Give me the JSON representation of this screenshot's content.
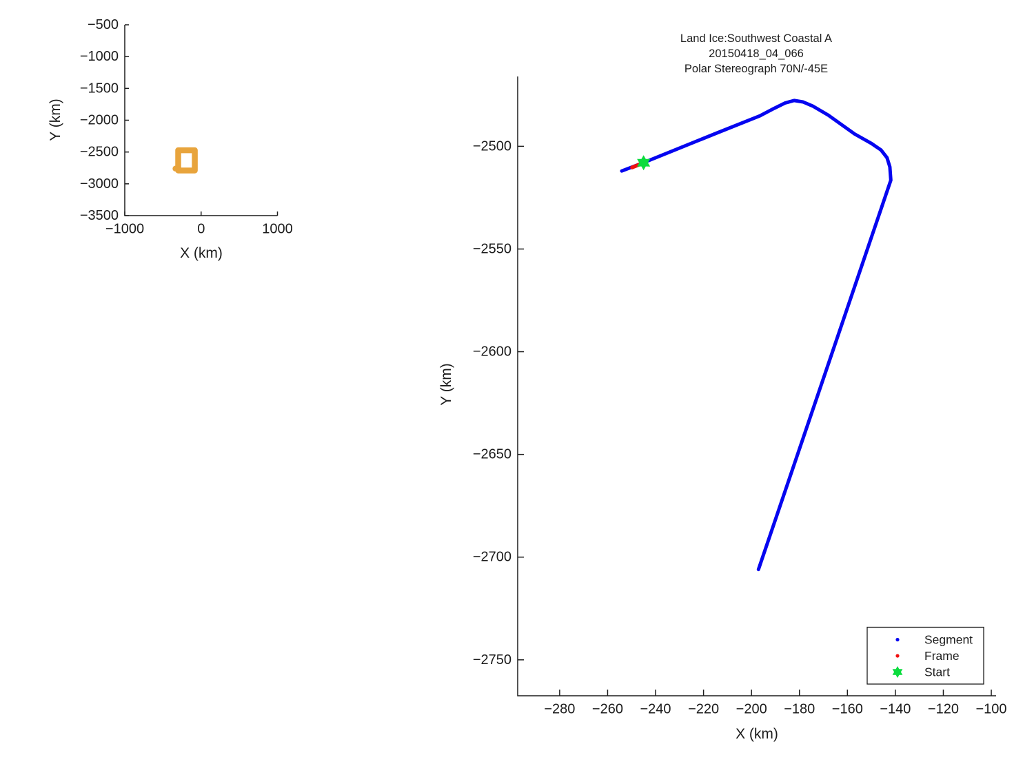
{
  "figure": {
    "background": "#ffffff",
    "axis_color": "#1c1c1c"
  },
  "overview_plot": {
    "xlabel": "X (km)",
    "ylabel": "Y (km)"
  },
  "main_plot": {
    "title_lines": [
      "Land Ice:Southwest Coastal A",
      "20150418_04_066",
      "Polar Stereograph 70N/-45E"
    ],
    "xlabel": "X (km)",
    "ylabel": "Y (km)"
  },
  "legend": {
    "items": [
      {
        "label": "Segment",
        "marker": "blue-dot",
        "color": "#0505F0"
      },
      {
        "label": "Frame",
        "marker": "red-dot",
        "color": "#F01010"
      },
      {
        "label": "Start",
        "marker": "green-hexagram",
        "color": "#0BDC3E"
      }
    ]
  },
  "chart_data": [
    {
      "type": "line",
      "title": "",
      "xlabel": "X (km)",
      "ylabel": "Y (km)",
      "xlim": [
        -1000,
        1000
      ],
      "ylim": [
        -3500,
        -500
      ],
      "xticks": [
        -1000,
        0,
        1000
      ],
      "yticks": [
        -500,
        -1000,
        -1500,
        -2000,
        -2500,
        -3000,
        -3500
      ],
      "grid": false,
      "legend_position": "none",
      "series": [
        {
          "name": "full-survey-track-outline",
          "color": "#E8A43C",
          "linewidth": 8.5,
          "closed": true,
          "x": [
            -300,
            -83,
            -83,
            -300
          ],
          "y": [
            -2472,
            -2472,
            -2791,
            -2791
          ]
        },
        {
          "name": "full-survey-track-notch",
          "color": "#E8A43C",
          "linewidth": 8.5,
          "closed": false,
          "x": [
            -335,
            -296
          ],
          "y": [
            -2760,
            -2760
          ]
        }
      ]
    },
    {
      "type": "line",
      "title": "Land Ice:Southwest Coastal A  20150418_04_066  Polar Stereograph 70N/-45E",
      "xlabel": "X (km)",
      "ylabel": "Y (km)",
      "xlim": [
        -297.5,
        -98
      ],
      "ylim": [
        -2767.5,
        -2466
      ],
      "xticks": [
        -280,
        -260,
        -240,
        -220,
        -200,
        -180,
        -160,
        -140,
        -120,
        -100
      ],
      "yticks": [
        -2500,
        -2550,
        -2600,
        -2650,
        -2700,
        -2750
      ],
      "grid": false,
      "legend_position": "lower right",
      "series": [
        {
          "name": "Segment",
          "color": "#0505F0",
          "linewidth": 5,
          "closed": false,
          "x": [
            -254.1,
            -244.9,
            -214.4,
            -196.5,
            -190.5,
            -186.0,
            -182.2,
            -178.5,
            -174.5,
            -168.0,
            -157.0,
            -150.0,
            -146.0,
            -143.5,
            -142.3,
            -141.9,
            -197.1
          ],
          "y": [
            -2512.0,
            -2507.9,
            -2493.5,
            -2485.2,
            -2481.5,
            -2478.9,
            -2477.7,
            -2478.4,
            -2480.4,
            -2484.8,
            -2494.0,
            -2498.6,
            -2501.8,
            -2505.5,
            -2510.0,
            -2516.5,
            -2706.0
          ]
        },
        {
          "name": "Frame",
          "color": "#F01010",
          "linewidth": 5.5,
          "closed": false,
          "x": [
            -249.8,
            -245.5
          ],
          "y": [
            -2510.3,
            -2508.3
          ]
        },
        {
          "name": "Start",
          "color": "#0BDC3E",
          "marker": "hexagram",
          "size": 11,
          "x": [
            -245.0
          ],
          "y": [
            -2508.0
          ]
        }
      ]
    }
  ]
}
